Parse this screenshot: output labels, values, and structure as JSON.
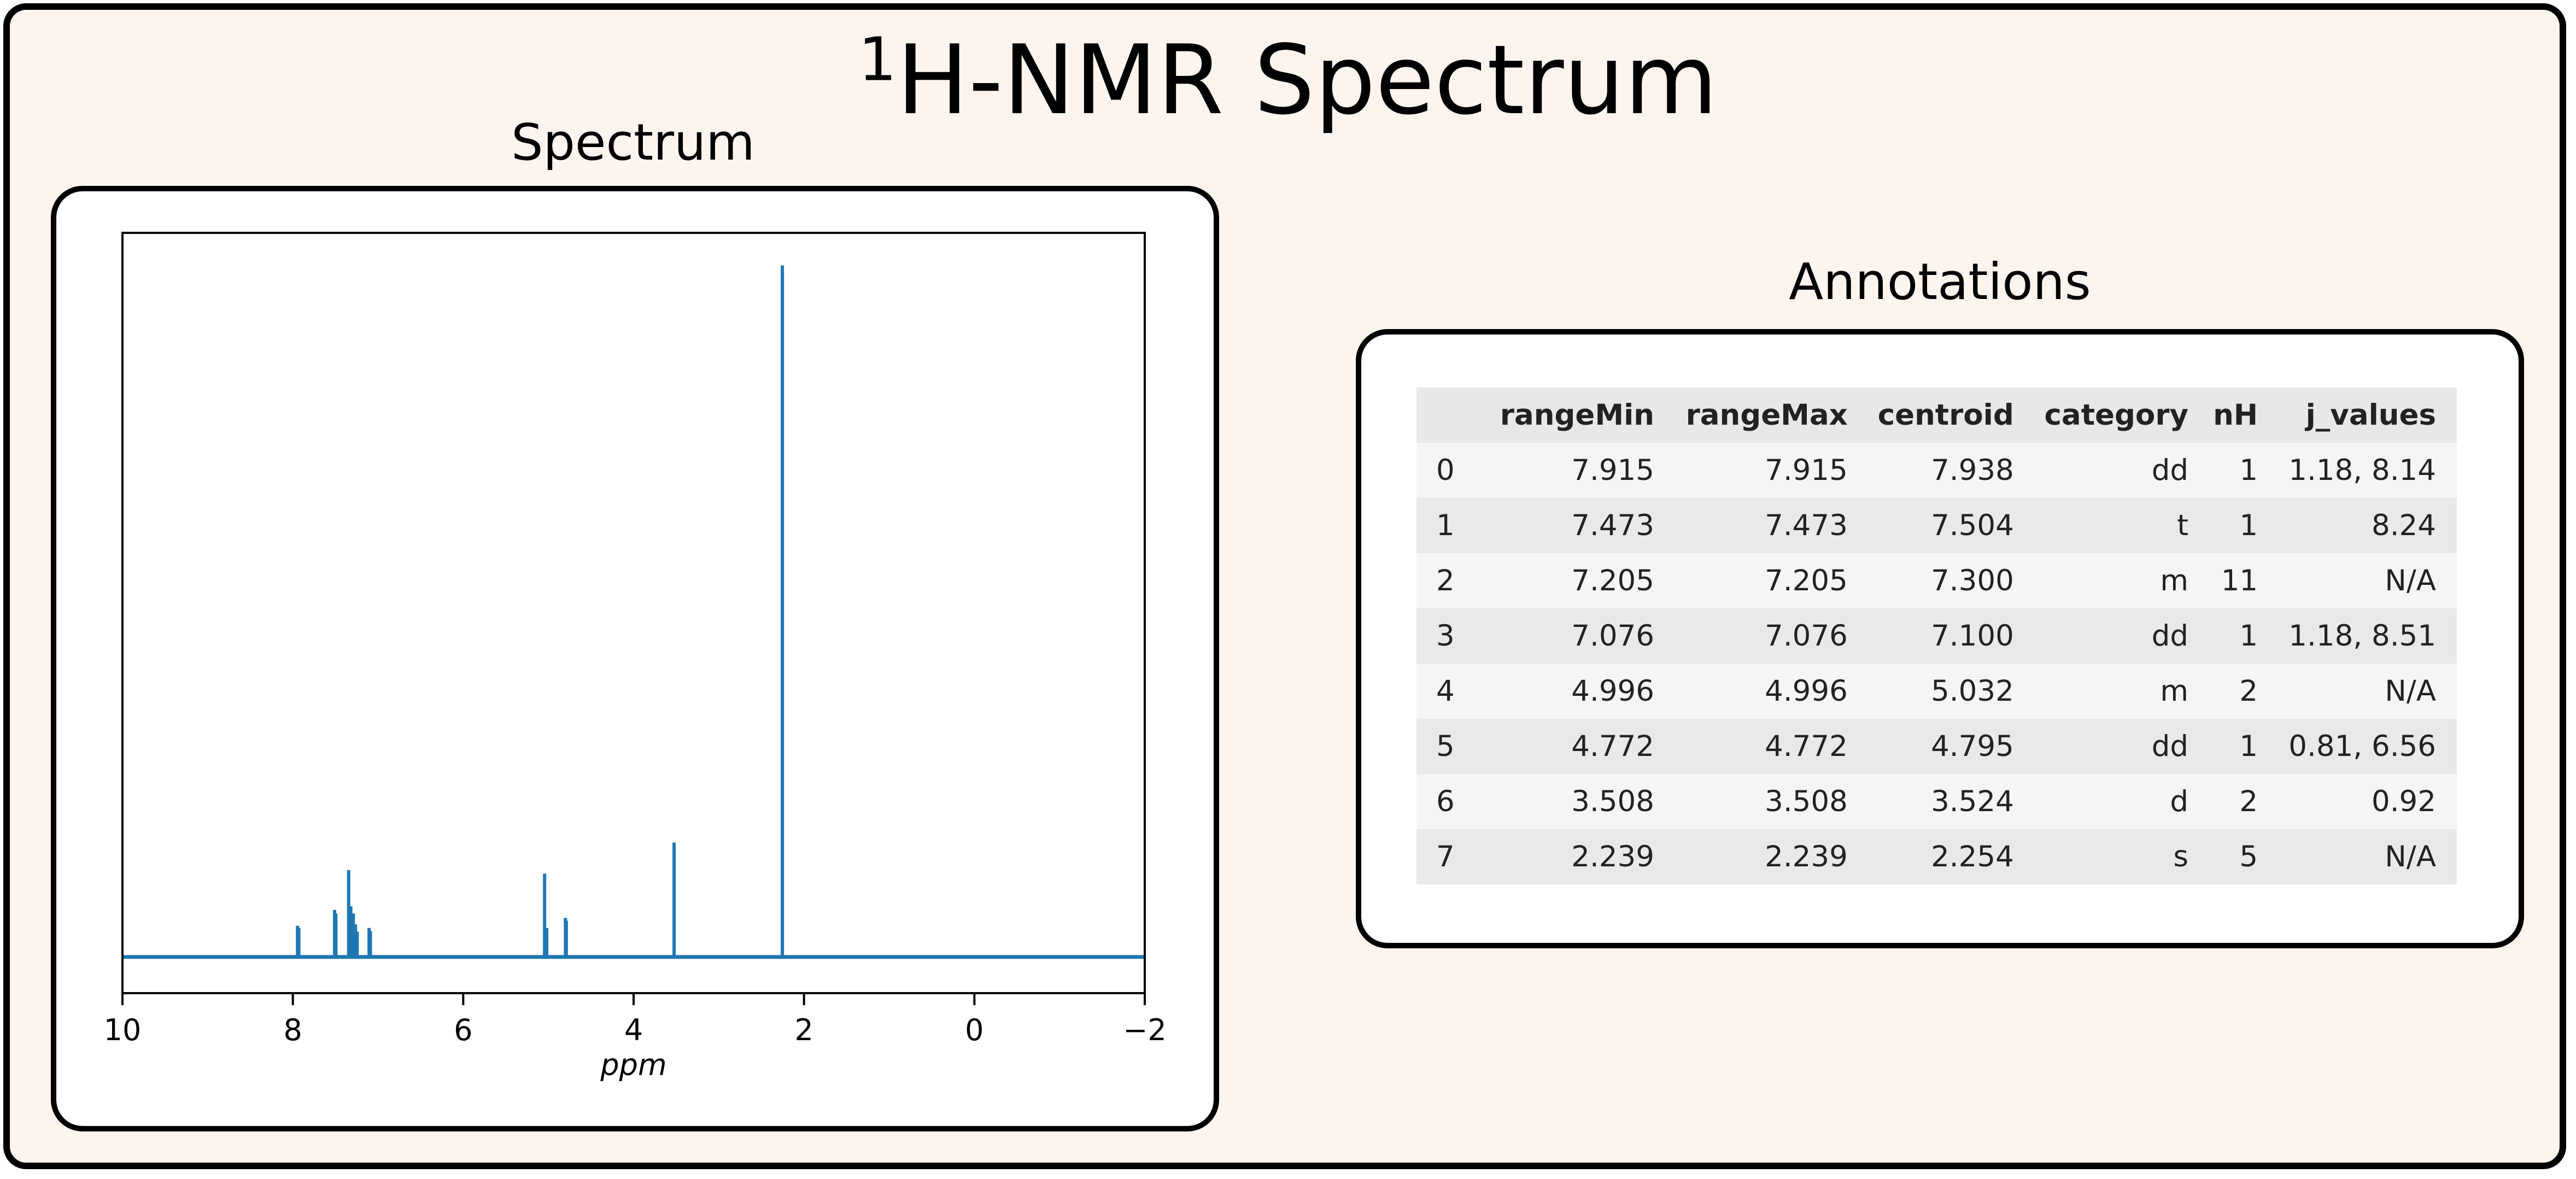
{
  "title": {
    "superscript": "1",
    "text": "H-NMR Spectrum"
  },
  "spectrum_panel": {
    "title": "Spectrum"
  },
  "annotations_panel": {
    "title": "Annotations"
  },
  "colors": {
    "background": "#fdf4ee",
    "line": "#1f77b4",
    "table_header": "#e8e8e8"
  },
  "chart_data": {
    "type": "line",
    "xlabel": "ppm",
    "ylabel": "",
    "xlim": [
      10,
      -2
    ],
    "ylim": [
      -0.05,
      1.0
    ],
    "x_reversed": true,
    "grid": false,
    "xticks": [
      10,
      8,
      6,
      4,
      2,
      0,
      -2
    ],
    "xtick_labels": [
      "10",
      "8",
      "6",
      "4",
      "2",
      "0",
      "−2"
    ],
    "peaks": [
      {
        "ppm": 7.945,
        "height": 0.043
      },
      {
        "ppm": 7.93,
        "height": 0.04
      },
      {
        "ppm": 7.51,
        "height": 0.065
      },
      {
        "ppm": 7.495,
        "height": 0.06
      },
      {
        "ppm": 7.345,
        "height": 0.12
      },
      {
        "ppm": 7.32,
        "height": 0.07
      },
      {
        "ppm": 7.29,
        "height": 0.06
      },
      {
        "ppm": 7.265,
        "height": 0.045
      },
      {
        "ppm": 7.245,
        "height": 0.035
      },
      {
        "ppm": 7.105,
        "height": 0.04
      },
      {
        "ppm": 7.09,
        "height": 0.036
      },
      {
        "ppm": 5.045,
        "height": 0.115
      },
      {
        "ppm": 5.02,
        "height": 0.04
      },
      {
        "ppm": 4.8,
        "height": 0.054
      },
      {
        "ppm": 4.79,
        "height": 0.05
      },
      {
        "ppm": 3.525,
        "height": 0.158
      },
      {
        "ppm": 2.254,
        "height": 0.955
      }
    ]
  },
  "table": {
    "columns": [
      "",
      "rangeMin",
      "rangeMax",
      "centroid",
      "category",
      "nH",
      "j_values"
    ],
    "rows": [
      [
        "0",
        "7.915",
        "7.915",
        "7.938",
        "dd",
        "1",
        "1.18, 8.14"
      ],
      [
        "1",
        "7.473",
        "7.473",
        "7.504",
        "t",
        "1",
        "8.24"
      ],
      [
        "2",
        "7.205",
        "7.205",
        "7.300",
        "m",
        "11",
        "N/A"
      ],
      [
        "3",
        "7.076",
        "7.076",
        "7.100",
        "dd",
        "1",
        "1.18, 8.51"
      ],
      [
        "4",
        "4.996",
        "4.996",
        "5.032",
        "m",
        "2",
        "N/A"
      ],
      [
        "5",
        "4.772",
        "4.772",
        "4.795",
        "dd",
        "1",
        "0.81, 6.56"
      ],
      [
        "6",
        "3.508",
        "3.508",
        "3.524",
        "d",
        "2",
        "0.92"
      ],
      [
        "7",
        "2.239",
        "2.239",
        "2.254",
        "s",
        "5",
        "N/A"
      ]
    ]
  }
}
